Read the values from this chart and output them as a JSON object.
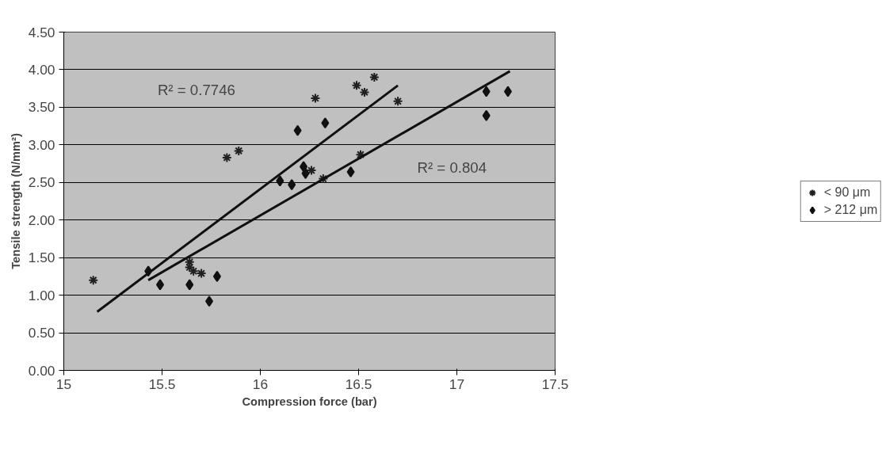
{
  "chart_data": {
    "type": "scatter",
    "xlabel": "Compression force (bar)",
    "ylabel": "Tensile strength (N/mm²)",
    "xlim": [
      15,
      17.5
    ],
    "xticks": [
      15,
      15.5,
      16,
      16.5,
      17,
      17.5
    ],
    "ylim": [
      0,
      4.5
    ],
    "yticks": [
      {
        "value": 0,
        "label": "0.00"
      },
      {
        "value": 0.5,
        "label": "0.50"
      },
      {
        "value": 1,
        "label": "1.00"
      },
      {
        "value": 1.5,
        "label": "1.50"
      },
      {
        "value": 2,
        "label": "2.00"
      },
      {
        "value": 2.5,
        "label": "2.50"
      },
      {
        "value": 3,
        "label": "3.00"
      },
      {
        "value": 3.5,
        "label": "3.50"
      },
      {
        "value": 4,
        "label": "4.00"
      },
      {
        "value": 4.5,
        "label": "4.50"
      }
    ],
    "grid": "y",
    "legend": "right",
    "series": [
      {
        "name": "< 90 μm",
        "color": "#202020",
        "marker": "cross",
        "x": [
          15.15,
          15.83,
          15.89,
          16.28,
          16.26,
          16.32,
          16.58,
          16.49,
          16.53,
          16.7,
          16.51,
          15.64,
          15.64,
          15.66,
          15.7
        ],
        "values": [
          1.2,
          2.83,
          2.92,
          3.62,
          2.66,
          2.55,
          3.9,
          3.79,
          3.7,
          3.58,
          2.87,
          1.44,
          1.37,
          1.32,
          1.29
        ]
      },
      {
        "name": "> 212 μm",
        "color": "#101010",
        "marker": "diamond",
        "x": [
          15.43,
          15.49,
          15.64,
          15.74,
          15.78,
          16.19,
          16.33,
          16.1,
          16.16,
          16.22,
          16.23,
          16.46,
          17.15,
          17.26,
          17.15
        ],
        "values": [
          1.32,
          1.14,
          1.14,
          0.92,
          1.25,
          3.19,
          3.29,
          2.52,
          2.47,
          2.71,
          2.62,
          2.64,
          3.71,
          3.71,
          3.39
        ]
      },
      {
        "type": "line",
        "color": "#101010",
        "x": [
          15.17,
          16.7
        ],
        "values": [
          0.78,
          3.79
        ]
      },
      {
        "type": "line",
        "color": "#101010",
        "x": [
          15.43,
          17.27
        ],
        "values": [
          1.2,
          3.98
        ]
      }
    ],
    "annotations": [
      "R² = 0.7746",
      "R² = 0.804"
    ]
  }
}
